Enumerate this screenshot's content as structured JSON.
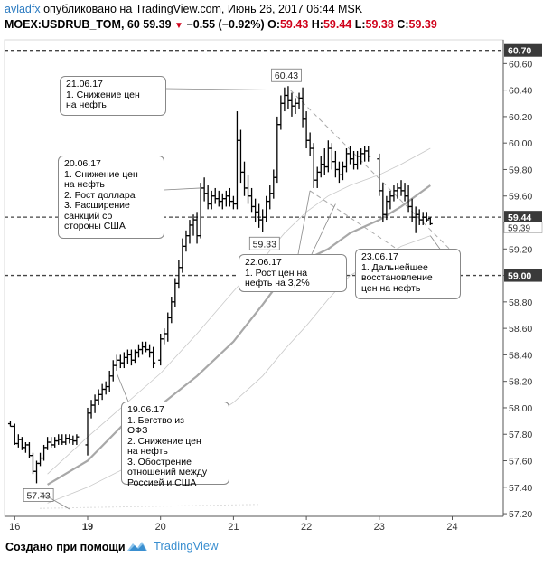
{
  "header": {
    "user": "avladfx",
    "published": "опубликовано на TradingView.com, Июнь 26, 2017 06:44 MSK",
    "symbol": "MOEX:USDRUB_TOM, 60",
    "last": "59.39",
    "change": "−0.55 (−0.92%)",
    "o_label": "O:",
    "o_val": "59.43",
    "h_label": "H:",
    "h_val": "59.44",
    "l_label": "L:",
    "l_val": "59.38",
    "c_label": "C:",
    "c_val": "59.39"
  },
  "footer": {
    "created": "Создано при помощи",
    "brand": "TradingView"
  },
  "callouts": [
    {
      "id": "c1",
      "text": "21.06.17\n1. Снижение цен\nна нефть"
    },
    {
      "id": "c2",
      "text": "20.06.17\n1. Снижение цен\nна нефть\n2. Рост доллара\n3. Расширение\nсанкций со\nстороны США"
    },
    {
      "id": "c3",
      "text": "22.06.17\n1. Рост цен на\nнефть на 3,2%"
    },
    {
      "id": "c4",
      "text": "23.06.17\n1. Дальнейшее\nвосстановление\nцен на нефть"
    },
    {
      "id": "c5",
      "text": "19.06.17\n1. Бегство из\nОФЗ\n2. Снижение цен\nна нефть\n3. Обострение\nотношений между\nРоссией и США"
    }
  ],
  "chart_data": {
    "type": "ohlc",
    "ylim": [
      57.18,
      60.78
    ],
    "y_ticks": [
      57.2,
      57.4,
      57.6,
      57.8,
      58.0,
      58.2,
      58.4,
      58.6,
      58.8,
      59.0,
      59.2,
      59.4,
      59.6,
      59.8,
      60.0,
      60.2,
      60.4,
      60.6
    ],
    "x_ticks": [
      {
        "label": "16",
        "x": 0
      },
      {
        "label": "19",
        "x": 10
      },
      {
        "label": "20",
        "x": 20
      },
      {
        "label": "21",
        "x": 30
      },
      {
        "label": "22",
        "x": 40
      },
      {
        "label": "23",
        "x": 50
      },
      {
        "label": "24",
        "x": 60
      }
    ],
    "horizontal_levels": [
      {
        "value": 60.7,
        "label": "60.70"
      },
      {
        "value": 59.44,
        "label": "59.44"
      },
      {
        "value": 59.0,
        "label": "59.00"
      }
    ],
    "last_price_label": "59.39",
    "price_labels": [
      {
        "text": "60.43",
        "x": 37.2,
        "y": 60.43
      },
      {
        "text": "59.33",
        "x": 34.2,
        "y": 59.33
      },
      {
        "text": "57.43",
        "x": 3.2,
        "y": 57.43
      }
    ],
    "bars": [
      [
        -0.6,
        57.88,
        57.9,
        57.86,
        57.86
      ],
      [
        0.0,
        57.86,
        57.88,
        57.72,
        57.73
      ],
      [
        0.5,
        57.73,
        57.8,
        57.7,
        57.76
      ],
      [
        1.0,
        57.76,
        57.78,
        57.68,
        57.7
      ],
      [
        1.5,
        57.7,
        57.74,
        57.66,
        57.72
      ],
      [
        2.0,
        57.72,
        57.74,
        57.62,
        57.64
      ],
      [
        2.5,
        57.64,
        57.66,
        57.5,
        57.52
      ],
      [
        3.0,
        57.52,
        57.6,
        57.43,
        57.58
      ],
      [
        3.5,
        57.58,
        57.66,
        57.56,
        57.62
      ],
      [
        4.0,
        57.62,
        57.72,
        57.6,
        57.7
      ],
      [
        4.5,
        57.7,
        57.78,
        57.68,
        57.74
      ],
      [
        5.0,
        57.74,
        57.78,
        57.7,
        57.72
      ],
      [
        5.5,
        57.72,
        57.78,
        57.7,
        57.75
      ],
      [
        6.0,
        57.75,
        57.8,
        57.72,
        57.76
      ],
      [
        6.5,
        57.76,
        57.8,
        57.72,
        57.74
      ],
      [
        7.0,
        57.74,
        57.8,
        57.72,
        57.77
      ],
      [
        7.5,
        57.77,
        57.8,
        57.73,
        57.76
      ],
      [
        8.0,
        57.76,
        57.79,
        57.72,
        57.75
      ],
      [
        8.5,
        57.75,
        57.8,
        57.72,
        57.78
      ],
      [
        10.0,
        57.72,
        58.0,
        57.64,
        57.96
      ],
      [
        10.5,
        57.96,
        58.06,
        57.92,
        58.02
      ],
      [
        11.0,
        58.02,
        58.1,
        57.96,
        58.06
      ],
      [
        11.5,
        58.06,
        58.14,
        58.02,
        58.1
      ],
      [
        12.0,
        58.1,
        58.18,
        58.06,
        58.14
      ],
      [
        12.5,
        58.14,
        58.2,
        58.1,
        58.16
      ],
      [
        13.0,
        58.16,
        58.28,
        58.12,
        58.24
      ],
      [
        13.5,
        58.24,
        58.36,
        58.2,
        58.32
      ],
      [
        14.0,
        58.32,
        58.4,
        58.28,
        58.36
      ],
      [
        14.5,
        58.36,
        58.4,
        58.3,
        58.34
      ],
      [
        15.0,
        58.34,
        58.42,
        58.3,
        58.38
      ],
      [
        15.5,
        58.38,
        58.44,
        58.33,
        58.4
      ],
      [
        16.0,
        58.4,
        58.44,
        58.32,
        58.36
      ],
      [
        16.5,
        58.36,
        58.44,
        58.34,
        58.42
      ],
      [
        17.0,
        58.42,
        58.48,
        58.38,
        58.44
      ],
      [
        17.5,
        58.44,
        58.5,
        58.4,
        58.46
      ],
      [
        18.0,
        58.46,
        58.5,
        58.42,
        58.44
      ],
      [
        18.5,
        58.44,
        58.48,
        58.38,
        58.42
      ],
      [
        19.0,
        58.42,
        58.46,
        58.3,
        58.34
      ],
      [
        20.0,
        58.36,
        58.56,
        58.32,
        58.52
      ],
      [
        20.5,
        58.52,
        58.6,
        58.48,
        58.56
      ],
      [
        21.0,
        58.56,
        58.72,
        58.5,
        58.68
      ],
      [
        21.5,
        58.68,
        58.84,
        58.64,
        58.8
      ],
      [
        22.0,
        58.8,
        58.98,
        58.76,
        58.94
      ],
      [
        22.5,
        58.94,
        59.12,
        58.9,
        59.06
      ],
      [
        23.0,
        59.06,
        59.28,
        59.02,
        59.22
      ],
      [
        23.5,
        59.22,
        59.34,
        59.18,
        59.3
      ],
      [
        24.0,
        59.3,
        59.42,
        59.24,
        59.38
      ],
      [
        24.5,
        59.38,
        59.46,
        59.3,
        59.42
      ],
      [
        25.0,
        59.42,
        59.48,
        59.24,
        59.3
      ],
      [
        25.5,
        59.3,
        59.7,
        59.28,
        59.66
      ],
      [
        26.0,
        59.66,
        59.74,
        59.56,
        59.62
      ],
      [
        26.5,
        59.62,
        59.68,
        59.5,
        59.54
      ],
      [
        27.0,
        59.54,
        59.64,
        59.5,
        59.6
      ],
      [
        27.5,
        59.6,
        59.66,
        59.54,
        59.58
      ],
      [
        28.0,
        59.58,
        59.64,
        59.52,
        59.56
      ],
      [
        28.5,
        59.56,
        59.62,
        59.5,
        59.58
      ],
      [
        29.0,
        59.58,
        59.64,
        59.52,
        59.6
      ],
      [
        29.5,
        59.6,
        59.66,
        59.52,
        59.56
      ],
      [
        30.0,
        59.56,
        59.6,
        59.5,
        59.54
      ],
      [
        30.5,
        59.54,
        60.24,
        59.5,
        60.02
      ],
      [
        31.0,
        60.02,
        60.1,
        59.7,
        59.78
      ],
      [
        31.5,
        59.78,
        59.86,
        59.6,
        59.66
      ],
      [
        32.0,
        59.66,
        59.76,
        59.54,
        59.6
      ],
      [
        32.5,
        59.6,
        59.66,
        59.48,
        59.52
      ],
      [
        33.0,
        59.52,
        59.58,
        59.4,
        59.48
      ],
      [
        33.5,
        59.48,
        59.54,
        59.36,
        59.42
      ],
      [
        34.0,
        59.42,
        59.5,
        59.33,
        59.44
      ],
      [
        34.5,
        59.44,
        59.6,
        59.4,
        59.56
      ],
      [
        35.0,
        59.56,
        59.68,
        59.5,
        59.62
      ],
      [
        35.5,
        59.62,
        59.8,
        59.58,
        59.74
      ],
      [
        36.0,
        59.74,
        60.2,
        59.7,
        60.14
      ],
      [
        36.5,
        60.14,
        60.36,
        60.1,
        60.3
      ],
      [
        37.0,
        60.3,
        60.42,
        60.24,
        60.36
      ],
      [
        37.5,
        60.36,
        60.43,
        60.26,
        60.32
      ],
      [
        38.0,
        60.32,
        60.38,
        60.2,
        60.28
      ],
      [
        38.5,
        60.28,
        60.34,
        60.22,
        60.3
      ],
      [
        39.0,
        60.3,
        60.38,
        60.26,
        60.34
      ],
      [
        39.5,
        60.34,
        60.42,
        60.12,
        60.18
      ],
      [
        40.0,
        60.18,
        60.24,
        59.96,
        60.02
      ],
      [
        40.5,
        60.02,
        60.08,
        59.9,
        59.96
      ],
      [
        41.0,
        59.96,
        60.0,
        59.66,
        59.72
      ],
      [
        41.5,
        59.72,
        59.82,
        59.66,
        59.78
      ],
      [
        42.0,
        59.78,
        59.9,
        59.74,
        59.84
      ],
      [
        42.5,
        59.84,
        59.96,
        59.76,
        59.82
      ],
      [
        43.0,
        59.82,
        60.02,
        59.78,
        59.96
      ],
      [
        43.5,
        59.96,
        60.0,
        59.8,
        59.86
      ],
      [
        44.0,
        59.86,
        59.94,
        59.74,
        59.8
      ],
      [
        44.5,
        59.8,
        59.86,
        59.7,
        59.76
      ],
      [
        45.0,
        59.76,
        59.86,
        59.72,
        59.82
      ],
      [
        45.5,
        59.82,
        59.96,
        59.78,
        59.92
      ],
      [
        46.0,
        59.92,
        59.98,
        59.84,
        59.88
      ],
      [
        46.5,
        59.88,
        59.94,
        59.8,
        59.84
      ],
      [
        47.0,
        59.84,
        59.94,
        59.8,
        59.9
      ],
      [
        47.5,
        59.9,
        59.96,
        59.84,
        59.92
      ],
      [
        48.0,
        59.92,
        59.98,
        59.86,
        59.94
      ],
      [
        48.5,
        59.94,
        59.98,
        59.86,
        59.9
      ],
      [
        50.0,
        59.88,
        59.92,
        59.6,
        59.64
      ],
      [
        50.5,
        59.64,
        59.7,
        59.4,
        59.46
      ],
      [
        51.0,
        59.46,
        59.6,
        59.42,
        59.56
      ],
      [
        51.5,
        59.56,
        59.64,
        59.5,
        59.6
      ],
      [
        52.0,
        59.6,
        59.68,
        59.56,
        59.64
      ],
      [
        52.5,
        59.64,
        59.7,
        59.58,
        59.66
      ],
      [
        53.0,
        59.66,
        59.72,
        59.6,
        59.64
      ],
      [
        53.5,
        59.64,
        59.7,
        59.56,
        59.6
      ],
      [
        54.0,
        59.6,
        59.68,
        59.48,
        59.52
      ],
      [
        54.5,
        59.52,
        59.58,
        59.4,
        59.44
      ],
      [
        55.0,
        59.44,
        59.52,
        59.32,
        59.46
      ],
      [
        55.5,
        59.46,
        59.5,
        59.38,
        59.42
      ],
      [
        56.0,
        59.42,
        59.48,
        59.38,
        59.44
      ],
      [
        56.5,
        59.44,
        59.48,
        59.4,
        59.42
      ],
      [
        57.0,
        59.43,
        59.44,
        59.38,
        59.39
      ]
    ],
    "ma_thick": [
      [
        4.5,
        57.42
      ],
      [
        10,
        57.6
      ],
      [
        15,
        57.88
      ],
      [
        20,
        58.02
      ],
      [
        25,
        58.24
      ],
      [
        30,
        58.5
      ],
      [
        34,
        58.78
      ],
      [
        37,
        59.0
      ],
      [
        40,
        59.12
      ],
      [
        43,
        59.2
      ],
      [
        46,
        59.32
      ],
      [
        50,
        59.42
      ],
      [
        53,
        59.52
      ],
      [
        57,
        59.68
      ]
    ],
    "ma_thin_upper": [
      [
        4.5,
        57.5
      ],
      [
        10,
        57.78
      ],
      [
        15,
        58.02
      ],
      [
        20,
        58.26
      ],
      [
        25,
        58.56
      ],
      [
        30,
        58.88
      ],
      [
        34,
        59.12
      ],
      [
        37,
        59.32
      ],
      [
        40,
        59.48
      ],
      [
        43,
        59.6
      ],
      [
        46,
        59.68
      ],
      [
        50,
        59.76
      ],
      [
        53,
        59.84
      ],
      [
        57,
        59.96
      ]
    ],
    "ma_thin_lower": [
      [
        4.5,
        57.28
      ],
      [
        10,
        57.4
      ],
      [
        15,
        57.54
      ],
      [
        20,
        57.7
      ],
      [
        25,
        57.86
      ],
      [
        30,
        58.04
      ],
      [
        34,
        58.24
      ],
      [
        37,
        58.44
      ],
      [
        40,
        58.62
      ],
      [
        43,
        58.82
      ],
      [
        46,
        59.0
      ],
      [
        50,
        59.12
      ],
      [
        53,
        59.22
      ],
      [
        57,
        59.3
      ]
    ],
    "trend_upper": [
      [
        37.8,
        60.4
      ],
      [
        60,
        59.18
      ]
    ],
    "trend_lower": [
      [
        40.5,
        59.64
      ],
      [
        60,
        58.92
      ]
    ],
    "trend_dotted": [
      [
        3.5,
        57.24
      ],
      [
        33.5,
        57.27
      ]
    ]
  }
}
